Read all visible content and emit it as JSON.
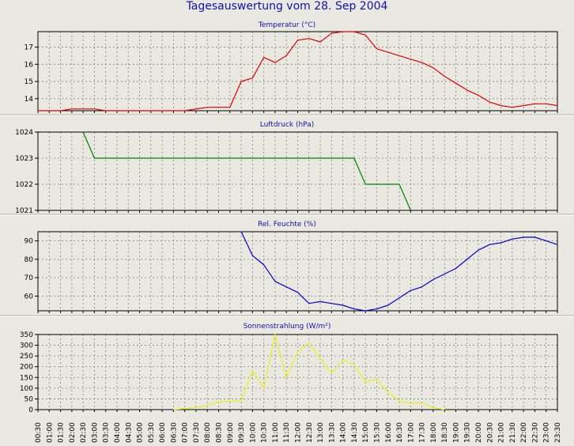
{
  "title": "Tagesauswertung vom 28. Sep 2004",
  "x_ticks": [
    "00:30",
    "01:00",
    "01:30",
    "02:00",
    "02:30",
    "03:00",
    "03:30",
    "04:00",
    "04:30",
    "05:00",
    "05:30",
    "06:00",
    "06:30",
    "07:00",
    "07:30",
    "08:00",
    "08:30",
    "09:00",
    "09:30",
    "10:00",
    "10:30",
    "11:00",
    "11:30",
    "12:00",
    "12:30",
    "13:00",
    "13:30",
    "14:00",
    "14:30",
    "15:00",
    "15:30",
    "16:00",
    "16:30",
    "17:00",
    "17:30",
    "18:00",
    "18:30",
    "19:00",
    "19:30",
    "20:00",
    "20:30",
    "21:00",
    "21:30",
    "22:00",
    "22:30",
    "23:00",
    "23:30"
  ],
  "colors": {
    "background": "#e9e9e1",
    "title": "#1010b0",
    "grid": "#808080",
    "temperature": "#e00000",
    "pressure": "#008000",
    "humidity": "#0000cc",
    "radiation": "#eeee20"
  },
  "chart_data": [
    {
      "type": "line",
      "title": "Temperatur (°C)",
      "x": [
        "00:30",
        "01:00",
        "01:30",
        "02:00",
        "02:30",
        "03:00",
        "03:30",
        "07:00",
        "07:30",
        "08:00",
        "08:30",
        "09:00",
        "09:30",
        "10:00",
        "10:30",
        "11:00",
        "11:30",
        "12:00",
        "12:30",
        "13:00",
        "13:30",
        "14:00",
        "14:30",
        "15:00",
        "15:30",
        "16:00",
        "16:30",
        "17:00",
        "17:30",
        "18:00",
        "18:30",
        "19:00",
        "19:30",
        "20:00",
        "20:30",
        "21:00",
        "21:30",
        "22:00",
        "22:30",
        "23:00",
        "23:30"
      ],
      "series": [
        {
          "values": [
            13.3,
            13.3,
            13.3,
            13.4,
            13.4,
            13.4,
            13.3,
            13.3,
            13.4,
            13.5,
            13.5,
            13.5,
            15.0,
            15.2,
            16.4,
            16.1,
            16.5,
            17.4,
            17.5,
            17.3,
            17.8,
            17.9,
            17.9,
            17.7,
            16.9,
            16.7,
            16.5,
            16.3,
            16.1,
            15.8,
            15.3,
            14.9,
            14.5,
            14.2,
            13.8,
            13.6,
            13.5,
            13.6,
            13.7,
            13.7,
            13.6
          ]
        }
      ],
      "yticks": [
        14,
        15,
        16,
        17
      ],
      "ylim": [
        13.3,
        17.9
      ],
      "grid": true
    },
    {
      "type": "line",
      "title": "Luftdruck (hPa)",
      "x": [
        "02:30",
        "03:00",
        "14:30",
        "15:00",
        "16:30",
        "17:00"
      ],
      "series": [
        {
          "values": [
            1024,
            1023,
            1023,
            1022,
            1022,
            1021
          ]
        }
      ],
      "yticks": [
        1021,
        1022,
        1023,
        1024
      ],
      "ylim": [
        1021,
        1024
      ],
      "grid": true
    },
    {
      "type": "line",
      "title": "Rel. Feuchte (%)",
      "x": [
        "09:30",
        "10:00",
        "10:30",
        "11:00",
        "11:30",
        "12:00",
        "12:30",
        "13:00",
        "13:30",
        "14:00",
        "14:30",
        "15:00",
        "15:30",
        "16:00",
        "16:30",
        "17:00",
        "17:30",
        "18:00",
        "18:30",
        "19:00",
        "19:30",
        "20:00",
        "20:30",
        "21:00",
        "21:30",
        "22:00",
        "22:30",
        "23:00",
        "23:30"
      ],
      "series": [
        {
          "values": [
            95,
            82,
            77,
            68,
            65,
            62,
            56,
            57,
            56,
            55,
            53,
            52,
            53,
            55,
            59,
            63,
            65,
            69,
            72,
            75,
            80,
            85,
            88,
            89,
            91,
            92,
            92,
            90,
            88
          ]
        }
      ],
      "yticks": [
        60,
        70,
        80,
        90
      ],
      "ylim": [
        52,
        95
      ],
      "grid": true
    },
    {
      "type": "line",
      "title": "Sonnenstrahlung (W/m²)",
      "x": [
        "06:30",
        "07:00",
        "07:30",
        "08:00",
        "08:30",
        "09:00",
        "09:30",
        "10:00",
        "10:30",
        "11:00",
        "11:30",
        "12:00",
        "12:30",
        "13:00",
        "13:30",
        "14:00",
        "14:30",
        "15:00",
        "15:30",
        "16:00",
        "16:30",
        "17:00",
        "17:30",
        "18:00",
        "18:30"
      ],
      "series": [
        {
          "values": [
            0,
            5,
            10,
            20,
            35,
            40,
            40,
            180,
            100,
            350,
            150,
            270,
            310,
            240,
            170,
            230,
            210,
            130,
            140,
            80,
            40,
            30,
            30,
            10,
            0
          ]
        }
      ],
      "yticks": [
        0,
        50,
        100,
        150,
        200,
        250,
        300,
        350
      ],
      "ylim": [
        0,
        350
      ],
      "grid": true
    }
  ]
}
